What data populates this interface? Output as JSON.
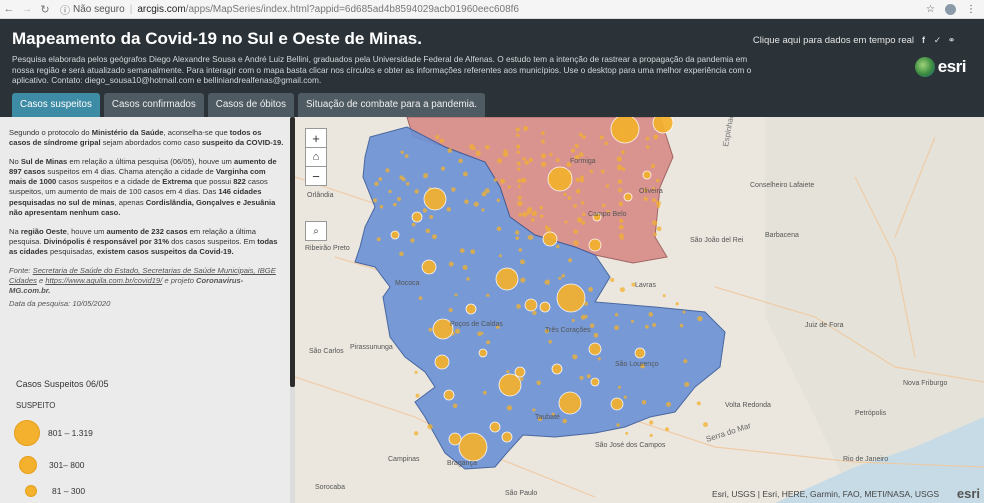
{
  "browser": {
    "back_icon": "arrow-left-icon",
    "security_label": "Não seguro",
    "url_host": "arcgis.com",
    "url_path": "/apps/MapSeries/index.html?appid=6d685ad4b8594029acb01960eec608f6"
  },
  "header": {
    "title": "Mapeamento da Covid-19 no Sul e Oeste de Minas.",
    "description": "Pesquisa elaborada pelos geógrafos Diego Alexandre Sousa e André Luiz Bellini, graduados pela Universidade Federal de Alfenas. O estudo tem a intenção de rastrear a propagação da pandemia em nossa região e será atualizado semanalmente. Para interagir com o mapa basta clicar nos círculos e obter as informações referentes aos municípios. Use o desktop para uma melhor experiência com o aplicativo. Contato: diego_sousa10@hotmail.com e belliniandrealfenas@gmail.com.",
    "share_text": "Clique aqui para dados em tempo real",
    "logo_text": "esri"
  },
  "tabs": [
    {
      "label": "Casos suspeitos",
      "active": true
    },
    {
      "label": "Casos confirmados",
      "active": false
    },
    {
      "label": "Casos de óbitos",
      "active": false
    },
    {
      "label": "Situação de combate para a pandemia.",
      "active": false
    }
  ],
  "sidebar": {
    "p1": {
      "a": "Segundo o protocolo do ",
      "b": "Ministério da Saúde",
      "c": ", aconselha-se que ",
      "d": "todos os casos de síndrome gripal",
      "e": " sejam abordados como caso ",
      "f": "suspeito da COVID-19."
    },
    "p2": {
      "a": "No ",
      "b": "Sul de Minas",
      "c": " em relação a última pesquisa (06/05), houve um ",
      "d": "aumento de 897 casos",
      "e": " suspeitos em 4 dias. Chama atenção a cidade de ",
      "f": "Varginha com mais de 1000",
      "g": " casos suspeitos e a cidade de ",
      "h": "Extrema",
      "i": " que possui ",
      "j": "822",
      "k": " casos suspeitos, um aumento de mais de 100 casos em 4 dias. Das ",
      "l": "146 cidades pesquisadas no sul de minas",
      "m": ", apenas ",
      "n": "Cordislândia, Gonçalves e Jesuânia não apresentam nenhum caso."
    },
    "p3": {
      "a": "Na ",
      "b": "região Oeste",
      "c": ", houve um ",
      "d": "aumento de 232 casos",
      "e": " em relação a última pesquisa. ",
      "f": "Divinópolis é responsável por 31%",
      "g": " dos casos suspeitos. Em ",
      "h": "todas as cidades",
      "i": " pesquisadas, ",
      "j": "existem casos suspeitos da Covid-19."
    },
    "fonte": {
      "a": "Fonte: ",
      "b": "Secretaria de Saúde do Estado, Secretarias de Saúde Municipais, IBGE Cidades",
      "c": " e ",
      "d": "https://www.aquila.com.br/covid19/",
      "e": " e projeto ",
      "f": "Coronavirus-MG.com.br."
    },
    "date_line": "Data da pesquisa: 10/05/2020",
    "legend_title": "Casos Suspeitos 06/05",
    "legend_sub": "SUSPEITO",
    "legend_items": [
      {
        "label": "801 – 1.319"
      },
      {
        "label": "301– 800"
      },
      {
        "label": "81 – 300"
      }
    ],
    "accent_color": "#f4b12d"
  },
  "map": {
    "zoom_in": "+",
    "zoom_out": "−",
    "home_icon": "home-icon",
    "search_icon": "search-icon",
    "attribution": "Esri, USGS | Esri, HERE, Garmin, FAO, METI/NASA, USGS",
    "powered": "esri",
    "colors": {
      "south": "#6e93d6",
      "west": "#d98e8a",
      "bubble": "#f4b12d"
    },
    "labels": {
      "espinhaco": "Espinhaço",
      "formiga": "Formiga",
      "oliveira": "Oliveira",
      "campo_belo": "Campo Belo",
      "orlandia": "Orlândia",
      "ribeirao_preto": "Ribeirão Preto",
      "mococa": "Mococa",
      "pocos": "Poços de Caldas",
      "sao_carlos": "São Carlos",
      "pirassununga": "Pirassununga",
      "sao_lourenco": "São Lourenço",
      "campinas": "Campinas",
      "braganca": "Bragança",
      "serra_do_mar": "Serra do Mar",
      "rio_de_janeiro": "Rio de Janeiro",
      "nova_friburgo": "Nova Friburgo",
      "sao_paulo": "São Paulo",
      "conselheiro_lafaiete": "Conselheiro Lafaiete",
      "barbacena": "Barbacena",
      "juiz_de_fora": "Juiz de Fora",
      "sao_joao_del_rei": "São João del Rei",
      "lavras": "Lavras",
      "tres_coracoes": "Três Corações",
      "volta_redonda": "Volta Redonda",
      "taubate": "Taubaté",
      "sao_jose": "São José dos Campos",
      "petropolis": "Petrópolis",
      "sorocaba": "Sorocaba"
    }
  }
}
